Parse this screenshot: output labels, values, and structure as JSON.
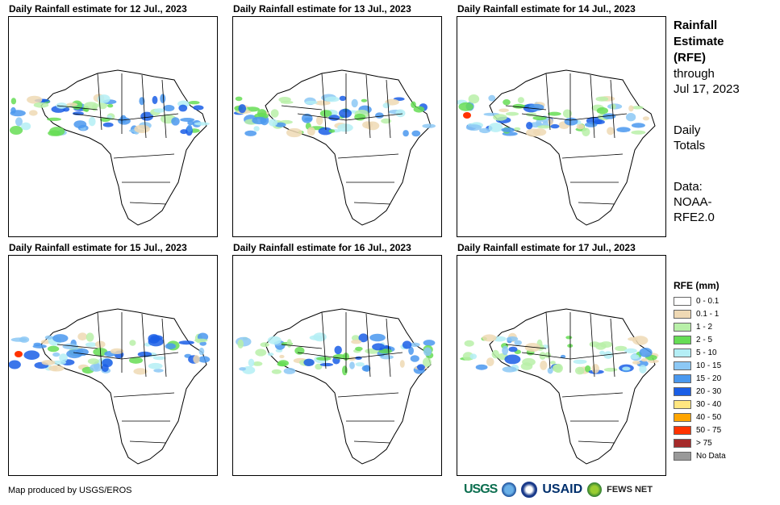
{
  "panels": [
    {
      "title": "Daily Rainfall estimate for 12 Jul., 2023"
    },
    {
      "title": "Daily Rainfall estimate for 13 Jul., 2023"
    },
    {
      "title": "Daily Rainfall estimate for 14 Jul., 2023"
    },
    {
      "title": "Daily Rainfall estimate for 15 Jul., 2023"
    },
    {
      "title": "Daily Rainfall estimate for 16 Jul., 2023"
    },
    {
      "title": "Daily Rainfall estimate for 17 Jul., 2023"
    }
  ],
  "side": {
    "title_lines": [
      "Rainfall",
      "Estimate",
      "(RFE)"
    ],
    "through_line1": "through",
    "through_line2": "Jul 17, 2023",
    "totals_line1": "Daily",
    "totals_line2": "Totals",
    "data_line1": "Data:",
    "data_line2": "NOAA-",
    "data_line3": "RFE2.0"
  },
  "legend": {
    "title": "RFE (mm)",
    "items": [
      {
        "label": "0 - 0.1",
        "color": "#ffffff"
      },
      {
        "label": "0.1 - 1",
        "color": "#efd9b4"
      },
      {
        "label": "1 - 2",
        "color": "#b8f0a8"
      },
      {
        "label": "2 - 5",
        "color": "#66dd55"
      },
      {
        "label": "5 - 10",
        "color": "#b4eef5"
      },
      {
        "label": "10 - 15",
        "color": "#8cc8f5"
      },
      {
        "label": "15 - 20",
        "color": "#4a98ee"
      },
      {
        "label": "20 - 30",
        "color": "#1a5ee6"
      },
      {
        "label": "30 - 40",
        "color": "#ffe680"
      },
      {
        "label": "40 - 50",
        "color": "#ffa500"
      },
      {
        "label": "50 - 75",
        "color": "#ff3300"
      },
      {
        "label": "> 75",
        "color": "#a52a2a"
      },
      {
        "label": "No Data",
        "color": "#999999"
      }
    ]
  },
  "footer": {
    "credit": "Map produced by USGS/EROS"
  },
  "logos": {
    "usgs": "USGS",
    "usaid": "USAID",
    "fews": "FEWS NET"
  }
}
